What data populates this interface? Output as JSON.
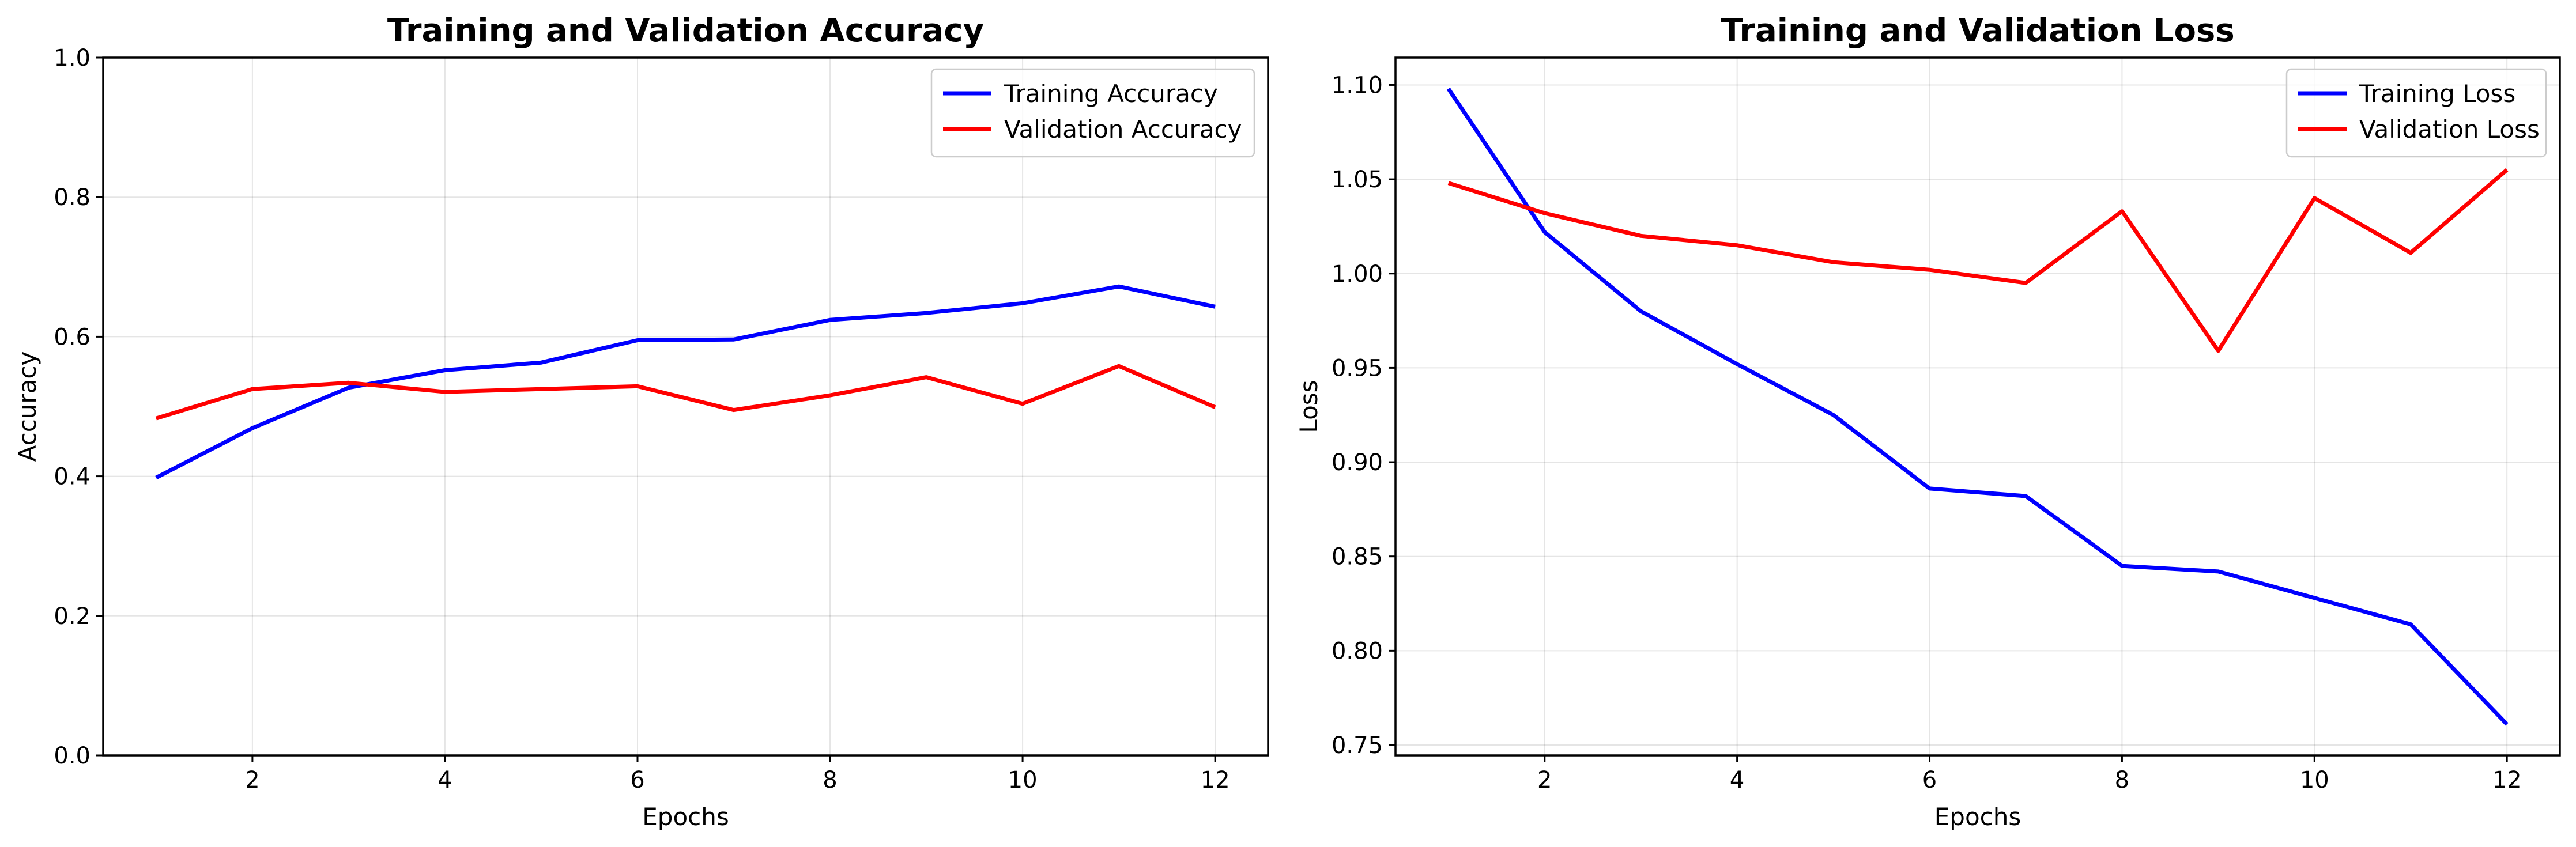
{
  "chart_data": [
    {
      "type": "line",
      "title": "Training and Validation Accuracy",
      "xlabel": "Epochs",
      "ylabel": "Accuracy",
      "xlim": [
        0.45,
        12.55
      ],
      "ylim": [
        0.0,
        1.0
      ],
      "x_ticks": [
        2,
        4,
        6,
        8,
        10,
        12
      ],
      "y_ticks": [
        0.0,
        0.2,
        0.4,
        0.6,
        0.8,
        1.0
      ],
      "y_tick_labels": [
        "0.0",
        "0.2",
        "0.4",
        "0.6",
        "0.8",
        "1.0"
      ],
      "grid": true,
      "legend_position": "top-right",
      "x": [
        1,
        2,
        3,
        4,
        5,
        6,
        7,
        8,
        9,
        10,
        11,
        12
      ],
      "series": [
        {
          "name": "Training Accuracy",
          "color": "#0000ff",
          "values": [
            0.398,
            0.469,
            0.527,
            0.552,
            0.563,
            0.595,
            0.596,
            0.624,
            0.634,
            0.648,
            0.672,
            0.643
          ]
        },
        {
          "name": "Validation Accuracy",
          "color": "#ff0000",
          "values": [
            0.483,
            0.525,
            0.534,
            0.521,
            0.525,
            0.529,
            0.495,
            0.516,
            0.542,
            0.504,
            0.558,
            0.499
          ]
        }
      ]
    },
    {
      "type": "line",
      "title": "Training and Validation Loss",
      "xlabel": "Epochs",
      "ylabel": "Loss",
      "xlim": [
        0.45,
        12.55
      ],
      "ylim": [
        0.7445,
        1.1145
      ],
      "x_ticks": [
        2,
        4,
        6,
        8,
        10,
        12
      ],
      "y_ticks": [
        0.75,
        0.8,
        0.85,
        0.9,
        0.95,
        1.0,
        1.05,
        1.1
      ],
      "y_tick_labels": [
        "0.75",
        "0.80",
        "0.85",
        "0.90",
        "0.95",
        "1.00",
        "1.05",
        "1.10"
      ],
      "grid": true,
      "legend_position": "top-right",
      "x": [
        1,
        2,
        3,
        4,
        5,
        6,
        7,
        8,
        9,
        10,
        11,
        12
      ],
      "series": [
        {
          "name": "Training Loss",
          "color": "#0000ff",
          "values": [
            1.098,
            1.022,
            0.98,
            0.952,
            0.925,
            0.886,
            0.882,
            0.845,
            0.842,
            0.828,
            0.814,
            0.761
          ]
        },
        {
          "name": "Validation Loss",
          "color": "#ff0000",
          "values": [
            1.048,
            1.032,
            1.02,
            1.015,
            1.006,
            1.002,
            0.995,
            1.033,
            0.959,
            1.04,
            1.011,
            1.055
          ]
        }
      ]
    }
  ]
}
